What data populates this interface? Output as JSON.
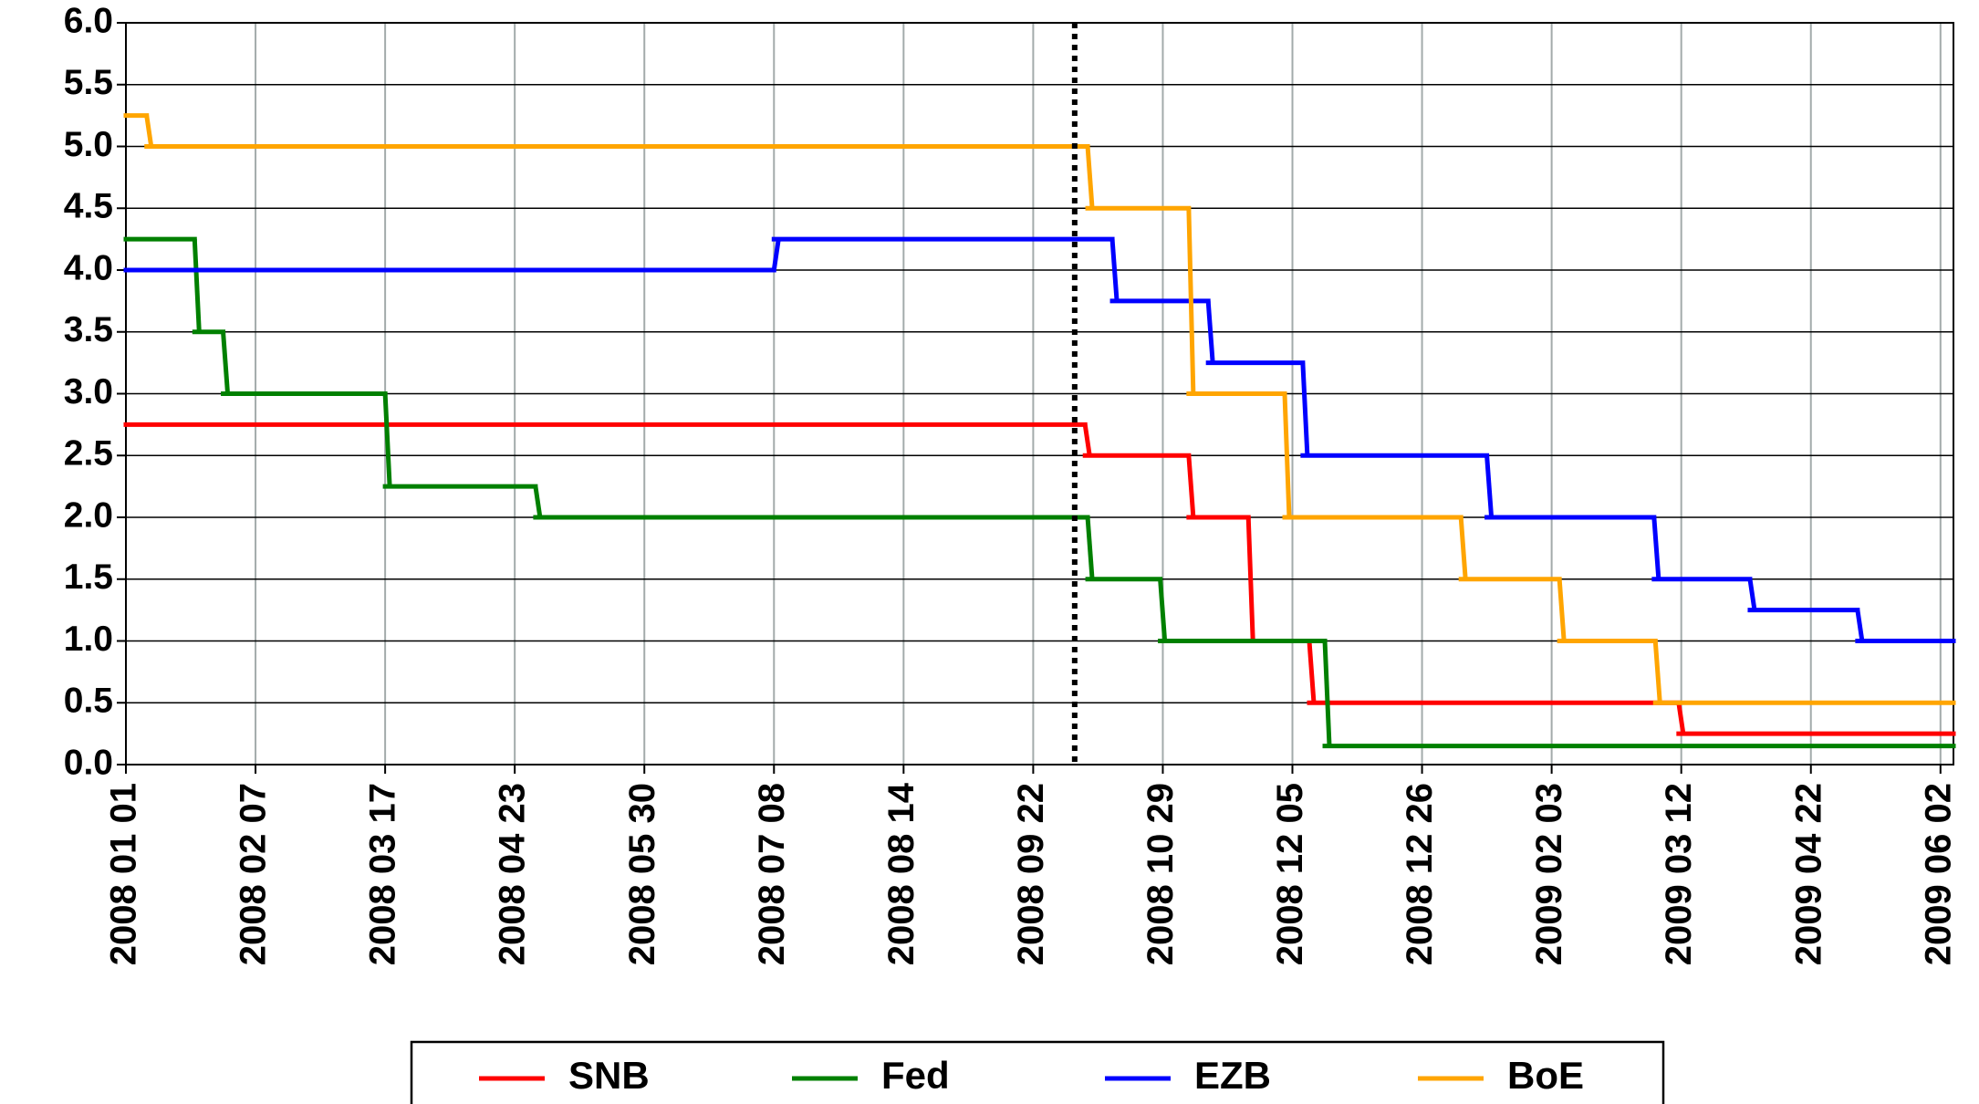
{
  "chart_data": {
    "type": "line",
    "step": "post",
    "xlim": [
      0,
      14.1
    ],
    "xticks": [
      {
        "value": 0,
        "label": "2008 01 01"
      },
      {
        "value": 1,
        "label": "2008 02 07"
      },
      {
        "value": 2,
        "label": "2008 03 17"
      },
      {
        "value": 3,
        "label": "2008 04 23"
      },
      {
        "value": 4,
        "label": "2008 05 30"
      },
      {
        "value": 5,
        "label": "2008 07 08"
      },
      {
        "value": 6,
        "label": "2008 08 14"
      },
      {
        "value": 7,
        "label": "2008 09 22"
      },
      {
        "value": 8,
        "label": "2008 10 29"
      },
      {
        "value": 9,
        "label": "2008 12 05"
      },
      {
        "value": 10,
        "label": "2008 12 26"
      },
      {
        "value": 11,
        "label": "2009 02 03"
      },
      {
        "value": 12,
        "label": "2009 03 12"
      },
      {
        "value": 13,
        "label": "2009 04 22"
      },
      {
        "value": 14,
        "label": "2009 06 02"
      }
    ],
    "ylim": [
      0,
      6
    ],
    "yticks": [
      {
        "value": 0,
        "label": "0.0"
      },
      {
        "value": 0.5,
        "label": "0.5"
      },
      {
        "value": 1,
        "label": "1.0"
      },
      {
        "value": 1.5,
        "label": "1.5"
      },
      {
        "value": 2,
        "label": "2.0"
      },
      {
        "value": 2.5,
        "label": "2.5"
      },
      {
        "value": 3,
        "label": "3.0"
      },
      {
        "value": 3.5,
        "label": "3.5"
      },
      {
        "value": 4,
        "label": "4.0"
      },
      {
        "value": 4.5,
        "label": "4.5"
      },
      {
        "value": 5,
        "label": "5.0"
      },
      {
        "value": 5.5,
        "label": "5.5"
      },
      {
        "value": 6,
        "label": "6.0"
      }
    ],
    "grid": true,
    "vline": 7.32,
    "legend": "bottom",
    "series": [
      {
        "name": "SNB",
        "color": "#ff0000",
        "x": [
          0,
          7.4,
          8.2,
          8.66,
          9.13,
          11.98
        ],
        "values": [
          2.75,
          2.5,
          2.0,
          1.0,
          0.5,
          0.25
        ]
      },
      {
        "name": "Fed",
        "color": "#008000",
        "x": [
          0,
          0.53,
          0.75,
          2.0,
          3.16,
          7.42,
          7.98,
          9.25
        ],
        "values": [
          4.25,
          3.5,
          3.0,
          2.25,
          2.0,
          1.5,
          1.0,
          0.15
        ]
      },
      {
        "name": "EZB",
        "color": "#0000ff",
        "x": [
          0,
          5.0,
          7.61,
          8.35,
          9.08,
          10.5,
          11.79,
          12.53,
          13.36
        ],
        "values": [
          4.0,
          4.25,
          3.75,
          3.25,
          2.5,
          2.0,
          1.5,
          1.25,
          1.0
        ]
      },
      {
        "name": "BoE",
        "color": "#ffa500",
        "x": [
          0,
          0.16,
          7.42,
          8.2,
          8.94,
          10.3,
          11.06,
          11.8
        ],
        "values": [
          5.25,
          5.0,
          4.5,
          3.0,
          2.0,
          1.5,
          1.0,
          0.5
        ]
      }
    ]
  }
}
